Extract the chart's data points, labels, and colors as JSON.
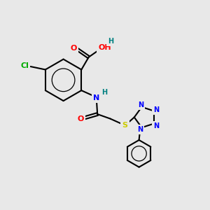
{
  "bg_color": "#e8e8e8",
  "bond_color": "#000000",
  "atom_colors": {
    "O": "#ff0000",
    "N": "#0000ff",
    "S": "#cccc00",
    "Cl": "#00aa00",
    "H": "#008080",
    "C": "#000000"
  }
}
